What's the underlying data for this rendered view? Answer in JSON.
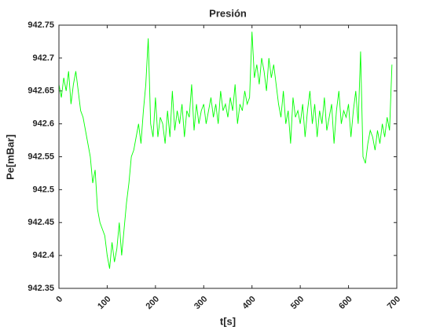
{
  "chart_data": {
    "type": "line",
    "title": "Presión",
    "xlabel": "t[s]",
    "ylabel": "Pe[mBar]",
    "xlim": [
      0,
      700
    ],
    "xticks": [
      0,
      100,
      200,
      300,
      400,
      500,
      600,
      700
    ],
    "ylim": [
      942.35,
      942.75
    ],
    "yticks": [
      942.35,
      942.4,
      942.45,
      942.5,
      942.55,
      942.6,
      942.65,
      942.7,
      942.75
    ],
    "grid": false,
    "x": [
      0,
      5,
      10,
      15,
      20,
      25,
      30,
      35,
      40,
      45,
      50,
      55,
      60,
      65,
      70,
      75,
      80,
      85,
      90,
      95,
      100,
      105,
      110,
      115,
      120,
      125,
      130,
      135,
      140,
      145,
      150,
      155,
      160,
      165,
      170,
      175,
      180,
      185,
      190,
      195,
      200,
      205,
      210,
      215,
      220,
      225,
      230,
      235,
      240,
      245,
      250,
      255,
      260,
      265,
      270,
      275,
      280,
      285,
      290,
      295,
      300,
      305,
      310,
      315,
      320,
      325,
      330,
      335,
      340,
      345,
      350,
      355,
      360,
      365,
      370,
      375,
      380,
      385,
      390,
      395,
      400,
      405,
      410,
      415,
      420,
      425,
      430,
      435,
      440,
      445,
      450,
      455,
      460,
      465,
      470,
      475,
      480,
      485,
      490,
      495,
      500,
      505,
      510,
      515,
      520,
      525,
      530,
      535,
      540,
      545,
      550,
      555,
      560,
      565,
      570,
      575,
      580,
      585,
      590,
      595,
      600,
      605,
      610,
      615,
      620,
      625,
      630,
      635,
      640,
      645,
      650,
      655,
      660,
      665,
      670,
      675,
      680,
      685,
      690
    ],
    "series": [
      {
        "name": "Pe",
        "color": "#00ff00",
        "values": [
          942.66,
          942.64,
          942.67,
          942.65,
          942.68,
          942.63,
          942.66,
          942.68,
          942.65,
          942.62,
          942.61,
          942.59,
          942.57,
          942.55,
          942.51,
          942.53,
          942.47,
          942.45,
          942.44,
          942.43,
          942.4,
          942.38,
          942.42,
          942.39,
          942.41,
          942.45,
          942.4,
          942.44,
          942.48,
          942.51,
          942.55,
          942.56,
          942.58,
          942.6,
          942.57,
          942.62,
          942.66,
          942.73,
          942.6,
          942.58,
          942.64,
          942.58,
          942.61,
          942.6,
          942.57,
          942.62,
          942.58,
          942.65,
          942.59,
          942.62,
          942.6,
          942.63,
          942.58,
          942.62,
          942.61,
          942.66,
          942.59,
          942.63,
          942.6,
          942.62,
          942.63,
          942.6,
          942.62,
          942.64,
          942.61,
          942.63,
          942.6,
          942.65,
          942.62,
          942.63,
          942.61,
          942.64,
          942.62,
          942.66,
          942.6,
          942.63,
          942.62,
          942.65,
          942.63,
          942.64,
          942.74,
          942.67,
          942.69,
          942.66,
          942.7,
          942.68,
          942.65,
          942.7,
          942.67,
          942.69,
          942.66,
          942.63,
          942.61,
          942.65,
          942.6,
          942.62,
          942.57,
          942.64,
          942.61,
          942.62,
          942.6,
          942.63,
          942.58,
          942.62,
          942.65,
          942.6,
          942.63,
          942.58,
          942.62,
          942.6,
          942.64,
          942.59,
          942.61,
          942.63,
          942.57,
          942.62,
          942.65,
          942.6,
          942.62,
          942.61,
          942.63,
          942.58,
          942.62,
          942.65,
          942.6,
          942.71,
          942.55,
          942.54,
          942.57,
          942.59,
          942.58,
          942.56,
          942.59,
          942.57,
          942.6,
          942.58,
          942.61,
          942.59,
          942.69
        ]
      }
    ]
  }
}
